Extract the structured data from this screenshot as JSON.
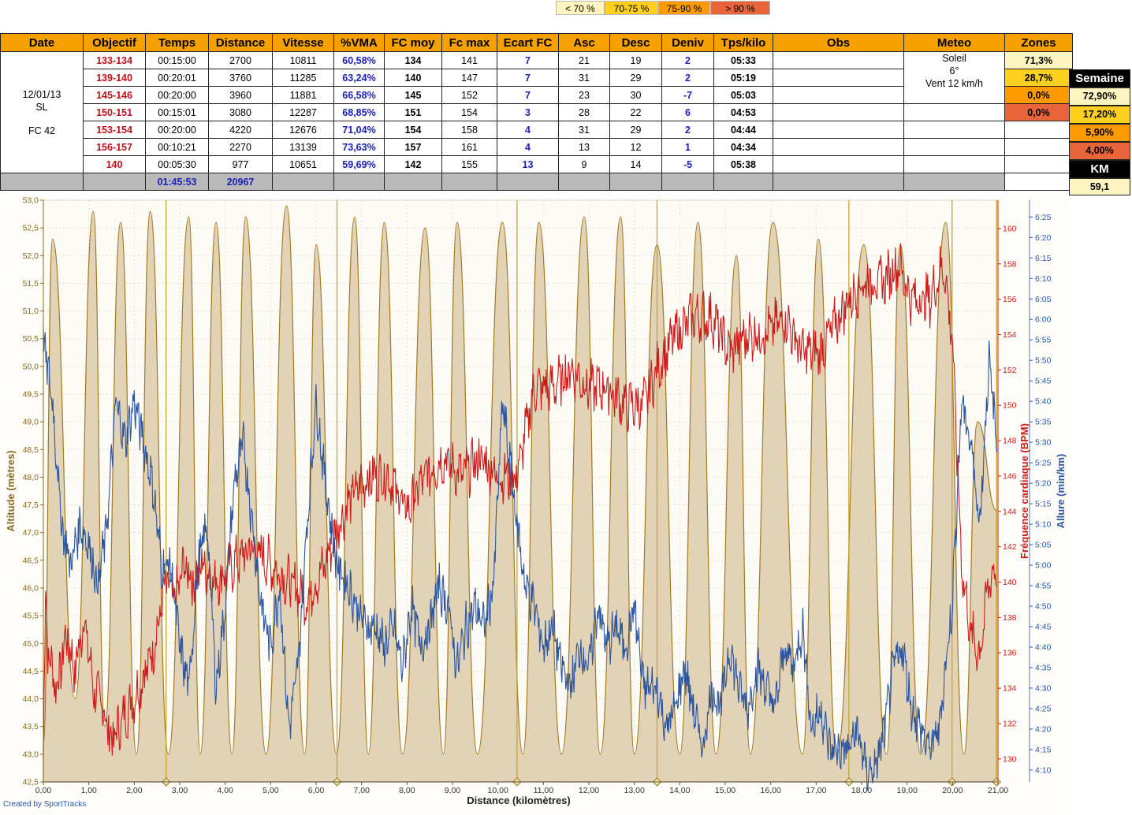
{
  "legend": [
    {
      "label": "< 70 %",
      "color": "#fff5c0"
    },
    {
      "label": "70-75 %",
      "color": "#ffd020"
    },
    {
      "label": "75-90 %",
      "color": "#ff9a00"
    },
    {
      "label": "> 90 %",
      "color": "#e8643a"
    }
  ],
  "table": {
    "headers": [
      "Date",
      "Objectif",
      "Temps",
      "Distance",
      "Vitesse",
      "%VMA",
      "FC moy",
      "Fc max",
      "Ecart FC",
      "Asc",
      "Desc",
      "Deniv",
      "Tps/kilo",
      "Obs",
      "Meteo",
      "Zones"
    ],
    "session": {
      "date": "12/01/13",
      "type": "SL",
      "fc": "FC 42"
    },
    "meteo": {
      "line1": "Soleil",
      "line2": "6°",
      "line3": "Vent 12 km/h"
    },
    "rows": [
      {
        "objectif": "133-134",
        "temps": "00:15:00",
        "distance": "2700",
        "vitesse": "10811",
        "vma": "60,58%",
        "fcmoy": "134",
        "fcmax": "141",
        "ecart": "7",
        "asc": "21",
        "desc": "19",
        "deniv": "2",
        "tpskilo": "05:33",
        "zone": "71,3%",
        "zonecolor": "#fff5c0"
      },
      {
        "objectif": "139-140",
        "temps": "00:20:01",
        "distance": "3760",
        "vitesse": "11285",
        "vma": "63,24%",
        "fcmoy": "140",
        "fcmax": "147",
        "ecart": "7",
        "asc": "31",
        "desc": "29",
        "deniv": "2",
        "tpskilo": "05:19",
        "zone": "28,7%",
        "zonecolor": "#ffd020"
      },
      {
        "objectif": "145-146",
        "temps": "00:20:00",
        "distance": "3960",
        "vitesse": "11881",
        "vma": "66,58%",
        "fcmoy": "145",
        "fcmax": "152",
        "ecart": "7",
        "asc": "23",
        "desc": "30",
        "deniv": "-7",
        "tpskilo": "05:03",
        "zone": "0,0%",
        "zonecolor": "#ff9a00"
      },
      {
        "objectif": "150-151",
        "temps": "00:15:01",
        "distance": "3080",
        "vitesse": "12287",
        "vma": "68,85%",
        "fcmoy": "151",
        "fcmax": "154",
        "ecart": "3",
        "asc": "28",
        "desc": "22",
        "deniv": "6",
        "tpskilo": "04:53",
        "zone": "0,0%",
        "zonecolor": "#e8643a"
      },
      {
        "objectif": "153-154",
        "temps": "00:20:00",
        "distance": "4220",
        "vitesse": "12676",
        "vma": "71,04%",
        "fcmoy": "154",
        "fcmax": "158",
        "ecart": "4",
        "asc": "31",
        "desc": "29",
        "deniv": "2",
        "tpskilo": "04:44",
        "zone": "",
        "zonecolor": "#ffffff"
      },
      {
        "objectif": "156-157",
        "temps": "00:10:21",
        "distance": "2270",
        "vitesse": "13139",
        "vma": "73,63%",
        "fcmoy": "157",
        "fcmax": "161",
        "ecart": "4",
        "asc": "13",
        "desc": "12",
        "deniv": "1",
        "tpskilo": "04:34",
        "zone": "",
        "zonecolor": "#ffffff"
      },
      {
        "objectif": "140",
        "temps": "00:05:30",
        "distance": "977",
        "vitesse": "10651",
        "vma": "59,69%",
        "fcmoy": "142",
        "fcmax": "155",
        "ecart": "13",
        "asc": "9",
        "desc": "14",
        "deniv": "-5",
        "tpskilo": "05:38",
        "zone": "",
        "zonecolor": "#ffffff"
      }
    ],
    "total": {
      "temps": "01:45:53",
      "distance": "20967"
    }
  },
  "semaine": {
    "title": "Semaine",
    "values": [
      {
        "value": "72,90%",
        "color": "#fff5c0"
      },
      {
        "value": "17,20%",
        "color": "#ffd020"
      },
      {
        "value": "5,90%",
        "color": "#ff9a00"
      },
      {
        "value": "4,00%",
        "color": "#e8643a"
      }
    ],
    "km_label": "KM",
    "km_value": "59,1"
  },
  "chart_data": {
    "type": "line",
    "xlabel": "Distance (kilomètres)",
    "ylabel_left": "Altitude (mètres)",
    "ylabel_right1": "Fréquence cardiaque (BPM)",
    "ylabel_right2": "Allure (min/km)",
    "credit": "Created by SportTracks",
    "xlim": [
      0,
      21
    ],
    "x_ticks": [
      "0,00",
      "1,00",
      "2,00",
      "3,00",
      "4,00",
      "5,00",
      "6,00",
      "7,00",
      "8,00",
      "9,00",
      "10,00",
      "11,00",
      "12,00",
      "13,00",
      "14,00",
      "15,00",
      "16,00",
      "17,00",
      "18,00",
      "19,00",
      "20,00",
      "21,00"
    ],
    "alt_ylim": [
      42.5,
      53.0
    ],
    "alt_ticks": [
      "42,5",
      "43,0",
      "43,5",
      "44,0",
      "44,5",
      "45,0",
      "45,5",
      "46,0",
      "46,5",
      "47,0",
      "47,5",
      "48,0",
      "48,5",
      "49,0",
      "49,5",
      "50,0",
      "50,5",
      "51,0",
      "51,5",
      "52,0",
      "52,5",
      "53,0"
    ],
    "hr_ticks": [
      "130",
      "132",
      "134",
      "136",
      "138",
      "140",
      "142",
      "144",
      "146",
      "148",
      "150",
      "152",
      "154",
      "156",
      "158",
      "160"
    ],
    "hr_ylim": [
      128.7,
      161.6
    ],
    "pace_ticks": [
      "4:10",
      "4:15",
      "4:20",
      "4:25",
      "4:30",
      "4:35",
      "4:40",
      "4:45",
      "4:50",
      "4:55",
      "5:00",
      "5:05",
      "5:10",
      "5:15",
      "5:20",
      "5:25",
      "5:30",
      "5:35",
      "5:40",
      "5:45",
      "5:50",
      "5:55",
      "6:00",
      "6:05",
      "6:10",
      "6:15",
      "6:20",
      "6:25"
    ],
    "pace_ylim_min": [
      247.1,
      389.1
    ],
    "laps_km": [
      2.7,
      6.46,
      10.42,
      13.5,
      17.72,
      19.99,
      20.97
    ],
    "colors": {
      "altitude_fill": "#e3d3b6",
      "altitude_line": "#a2791e",
      "hr": "#cc1b1b",
      "pace": "#2c559e",
      "lap": "#c9a42a"
    },
    "series": [
      {
        "name": "Altitude",
        "x": [
          0,
          0.2,
          0.7,
          1.1,
          1.35,
          1.7,
          2.05,
          2.35,
          2.75,
          3.2,
          3.45,
          3.8,
          4.15,
          4.45,
          4.9,
          5.35,
          5.75,
          6.0,
          6.45,
          6.85,
          7.15,
          7.5,
          7.9,
          8.4,
          8.8,
          9.1,
          9.55,
          10.1,
          10.55,
          10.9,
          11.4,
          11.9,
          12.25,
          12.7,
          13.0,
          13.5,
          14.0,
          14.4,
          14.8,
          15.25,
          15.55,
          16.05,
          16.7,
          17.05,
          17.45,
          18.05,
          18.55,
          18.85,
          19.3,
          19.85,
          20.25,
          20.55,
          20.97
        ],
        "y": [
          43.2,
          52.3,
          44.0,
          52.8,
          43.5,
          52.6,
          43.0,
          52.8,
          43.0,
          52.7,
          43.0,
          52.6,
          43.0,
          52.7,
          43.0,
          52.9,
          43.0,
          52.2,
          43.0,
          52.7,
          43.0,
          52.6,
          43.0,
          52.5,
          43.0,
          52.6,
          43.0,
          52.6,
          43.0,
          52.6,
          43.0,
          52.7,
          43.0,
          52.7,
          43.0,
          52.2,
          43.0,
          52.6,
          43.0,
          52.0,
          43.0,
          52.6,
          43.0,
          52.3,
          43.0,
          52.2,
          43.0,
          52.2,
          43.0,
          52.6,
          43.0,
          49.0,
          47.4
        ]
      },
      {
        "name": "Fréquence cardiaque",
        "x": [
          0,
          0.05,
          0.1,
          0.3,
          0.5,
          0.7,
          0.9,
          1.1,
          1.3,
          1.5,
          1.7,
          1.9,
          2.1,
          2.4,
          2.7,
          2.9,
          3.1,
          3.3,
          3.5,
          3.8,
          4.2,
          4.6,
          5.0,
          5.4,
          5.8,
          6.2,
          6.46,
          6.8,
          7.2,
          7.6,
          8.0,
          8.4,
          8.8,
          9.2,
          9.6,
          10.0,
          10.42,
          10.8,
          11.2,
          11.6,
          12.0,
          12.4,
          12.8,
          13.2,
          13.5,
          13.9,
          14.3,
          14.7,
          15.1,
          15.5,
          15.9,
          16.3,
          16.7,
          17.1,
          17.5,
          17.72,
          18.1,
          18.5,
          18.8,
          19.1,
          19.5,
          19.8,
          19.99,
          20.2,
          20.4,
          20.6,
          20.8,
          20.97
        ],
        "y": [
          130,
          140,
          136,
          134,
          137,
          135,
          138,
          134,
          133,
          131,
          132,
          133,
          134,
          136,
          140,
          139,
          141,
          140,
          141,
          140,
          141,
          142,
          141,
          140,
          139,
          141,
          143,
          145,
          146,
          146,
          144,
          146,
          147,
          146,
          147,
          146,
          146,
          151,
          151,
          152,
          151,
          151,
          150,
          150,
          152,
          154,
          155,
          155,
          153,
          154,
          154,
          155,
          153,
          153,
          155,
          156,
          157,
          157,
          158,
          156,
          156,
          158,
          154,
          141,
          137,
          136,
          140,
          141
        ]
      },
      {
        "name": "Allure",
        "x": [
          0,
          0.2,
          0.4,
          0.6,
          0.8,
          1.0,
          1.2,
          1.4,
          1.6,
          1.8,
          2.0,
          2.2,
          2.4,
          2.6,
          2.8,
          3.0,
          3.2,
          3.4,
          3.6,
          3.8,
          4.0,
          4.2,
          4.4,
          4.6,
          4.8,
          5.0,
          5.2,
          5.4,
          5.6,
          5.8,
          6.0,
          6.2,
          6.46,
          6.7,
          6.9,
          7.1,
          7.3,
          7.5,
          7.7,
          7.9,
          8.1,
          8.3,
          8.5,
          8.7,
          8.9,
          9.1,
          9.3,
          9.5,
          9.7,
          9.9,
          10.1,
          10.42,
          10.6,
          10.8,
          11.0,
          11.2,
          11.4,
          11.6,
          11.8,
          12.0,
          12.2,
          12.4,
          12.6,
          12.8,
          13.0,
          13.2,
          13.5,
          13.7,
          13.9,
          14.1,
          14.3,
          14.5,
          14.7,
          14.9,
          15.1,
          15.3,
          15.5,
          15.7,
          15.9,
          16.1,
          16.3,
          16.5,
          16.7,
          16.9,
          17.1,
          17.3,
          17.5,
          17.72,
          17.9,
          18.1,
          18.3,
          18.5,
          18.7,
          18.9,
          19.1,
          19.3,
          19.5,
          19.7,
          19.99,
          20.2,
          20.4,
          20.6,
          20.8,
          20.97
        ],
        "y": [
          355,
          340,
          310,
          300,
          310,
          305,
          295,
          310,
          340,
          330,
          340,
          330,
          320,
          300,
          300,
          280,
          270,
          300,
          310,
          270,
          290,
          320,
          330,
          310,
          290,
          280,
          295,
          260,
          275,
          310,
          340,
          320,
          300,
          295,
          290,
          285,
          285,
          280,
          285,
          275,
          290,
          280,
          285,
          295,
          290,
          275,
          285,
          290,
          285,
          295,
          340,
          310,
          295,
          290,
          280,
          285,
          275,
          270,
          280,
          275,
          290,
          280,
          285,
          280,
          290,
          270,
          270,
          260,
          265,
          275,
          265,
          255,
          270,
          265,
          280,
          270,
          265,
          275,
          270,
          265,
          280,
          275,
          285,
          260,
          265,
          255,
          255,
          255,
          260,
          250,
          250,
          260,
          275,
          280,
          265,
          260,
          255,
          260,
          290,
          340,
          330,
          310,
          350,
          330
        ]
      }
    ]
  }
}
